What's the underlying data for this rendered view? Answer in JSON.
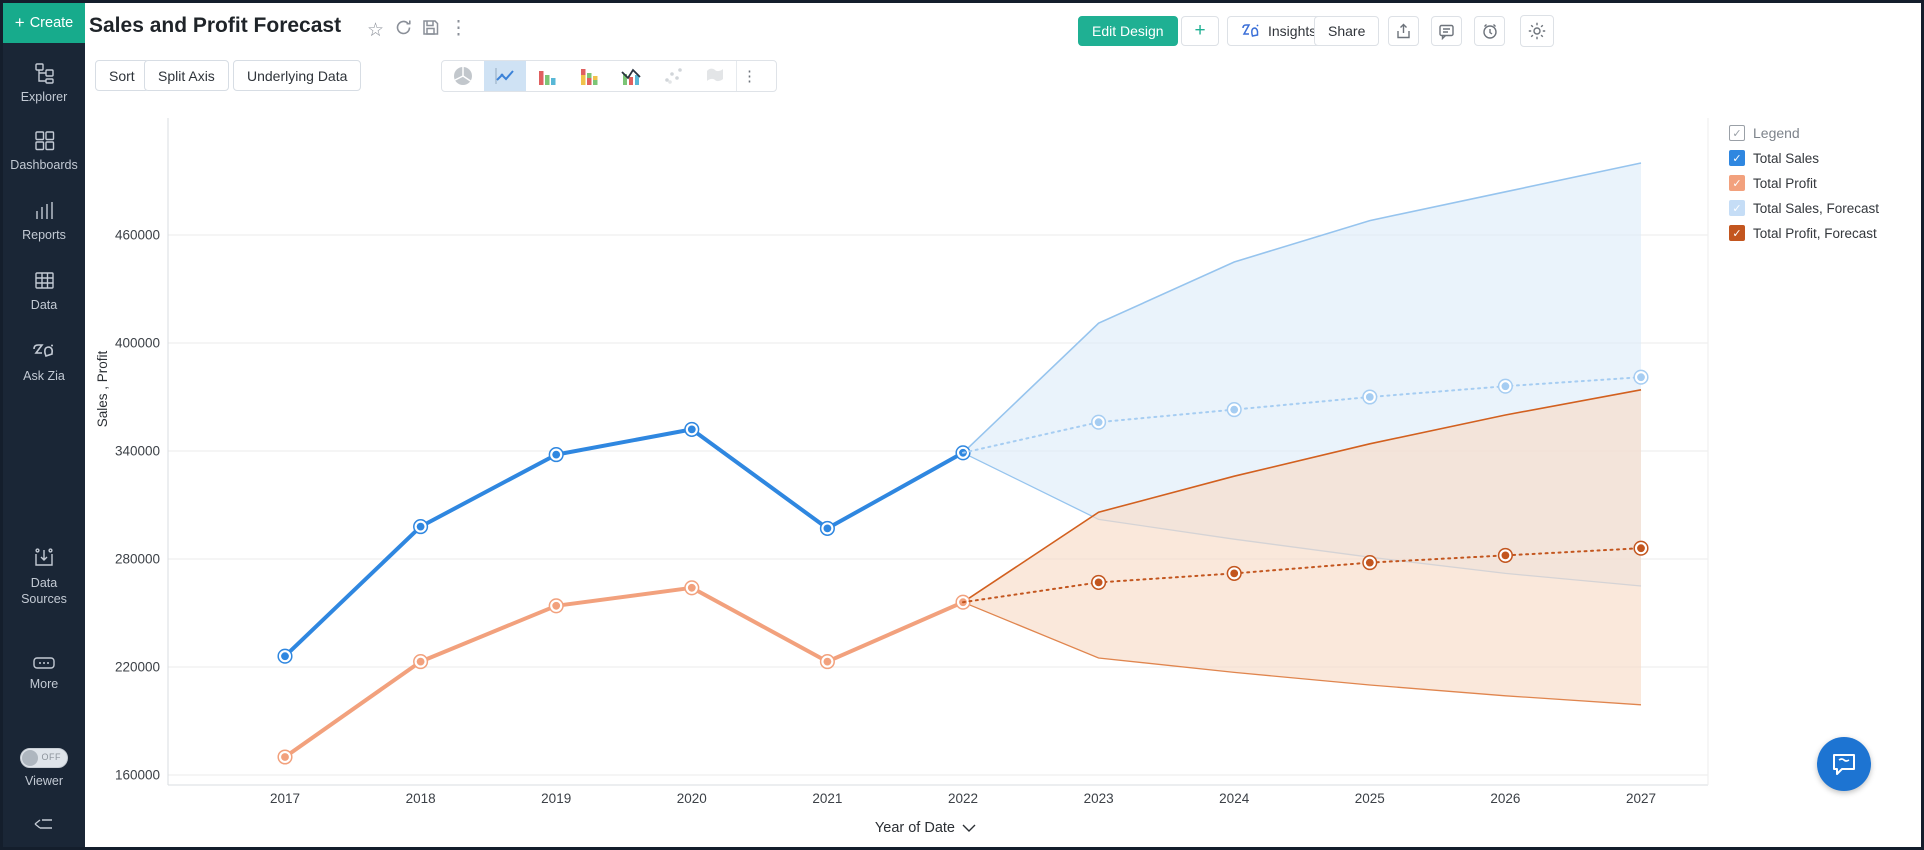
{
  "sidebar": {
    "create_label": "Create",
    "items": [
      {
        "icon": "explorer-tree-icon",
        "label": "Explorer"
      },
      {
        "icon": "dashboards-grid-icon",
        "label": "Dashboards"
      },
      {
        "icon": "reports-bars-icon",
        "label": "Reports"
      },
      {
        "icon": "data-table-icon",
        "label": "Data"
      },
      {
        "icon": "zia-icon",
        "label": "Ask Zia"
      },
      {
        "icon": "data-sources-icon",
        "label": "Data Sources"
      },
      {
        "icon": "more-ellipsis-icon",
        "label": "More"
      }
    ],
    "viewer_toggle": {
      "state": "OFF",
      "label": "Viewer"
    }
  },
  "header": {
    "title": "Sales and Profit Forecast",
    "title_icons": [
      "star-icon",
      "refresh-icon",
      "save-icon",
      "kebab-menu-icon"
    ],
    "edit_design_label": "Edit Design",
    "plus_label": "+",
    "insights_label": "Insights",
    "share_label": "Share",
    "icon_actions": [
      "export-icon",
      "comment-icon",
      "alert-clock-icon",
      "settings-gear-icon"
    ]
  },
  "toolbar": {
    "sort_label": "Sort",
    "split_axis_label": "Split Axis",
    "underlying_data_label": "Underlying Data",
    "chart_types": [
      "pie-chart-icon",
      "line-chart-icon",
      "bar-chart-icon",
      "stacked-bar-icon",
      "combo-chart-icon",
      "scatter-chart-icon",
      "map-chart-icon"
    ],
    "selected_chart_type": "line-chart-icon"
  },
  "legend": {
    "title": "Legend",
    "items": [
      {
        "label": "Total Sales",
        "color": "#2f87e0"
      },
      {
        "label": "Total Profit",
        "color": "#f2a17d"
      },
      {
        "label": "Total Sales, Forecast",
        "color": "#c5ddf6"
      },
      {
        "label": "Total Profit, Forecast",
        "color": "#c3561f"
      }
    ]
  },
  "chart_data": {
    "type": "line",
    "xlabel": "Year of Date",
    "ylabel": "Sales , Profit",
    "x": [
      2017,
      2018,
      2019,
      2020,
      2021,
      2022,
      2023,
      2024,
      2025,
      2026,
      2027
    ],
    "yticks": [
      160000,
      220000,
      280000,
      340000,
      400000,
      460000
    ],
    "ylim": [
      154000,
      525000
    ],
    "grid": true,
    "legend_position": "right",
    "series": [
      {
        "name": "Total Sales",
        "color": "#2f87e0",
        "style": "solid",
        "x": [
          2017,
          2018,
          2019,
          2020,
          2021,
          2022
        ],
        "values": [
          226000,
          298000,
          338000,
          352000,
          297000,
          339000
        ]
      },
      {
        "name": "Total Profit",
        "color": "#f2a17d",
        "style": "solid",
        "x": [
          2017,
          2018,
          2019,
          2020,
          2021,
          2022
        ],
        "values": [
          170000,
          223000,
          254000,
          264000,
          223000,
          256000
        ]
      },
      {
        "name": "Total Sales, Forecast",
        "color": "#a6cdf2",
        "style": "dotted",
        "x": [
          2022,
          2023,
          2024,
          2025,
          2026,
          2027
        ],
        "values": [
          339000,
          356000,
          363000,
          370000,
          376000,
          381000
        ],
        "band": {
          "upper": [
            339000,
            411000,
            445000,
            468000,
            484000,
            500000
          ],
          "lower": [
            339000,
            302000,
            291000,
            281000,
            272000,
            265000
          ],
          "fill": "#dcebf9",
          "opacity": 0.6,
          "edge_upper": "#96c4ee",
          "edge_lower": "#96c4ee"
        }
      },
      {
        "name": "Total Profit, Forecast",
        "color": "#c3561f",
        "style": "dotted",
        "x": [
          2022,
          2023,
          2024,
          2025,
          2026,
          2027
        ],
        "values": [
          256000,
          267000,
          272000,
          278000,
          282000,
          286000
        ],
        "band": {
          "upper": [
            256000,
            306000,
            326000,
            344000,
            360000,
            374000
          ],
          "lower": [
            256000,
            225000,
            217000,
            210000,
            204000,
            199000
          ],
          "fill": "#f7dcc8",
          "opacity": 0.65,
          "edge_upper": "#d2601f",
          "edge_lower": "#e0854e"
        }
      }
    ]
  }
}
